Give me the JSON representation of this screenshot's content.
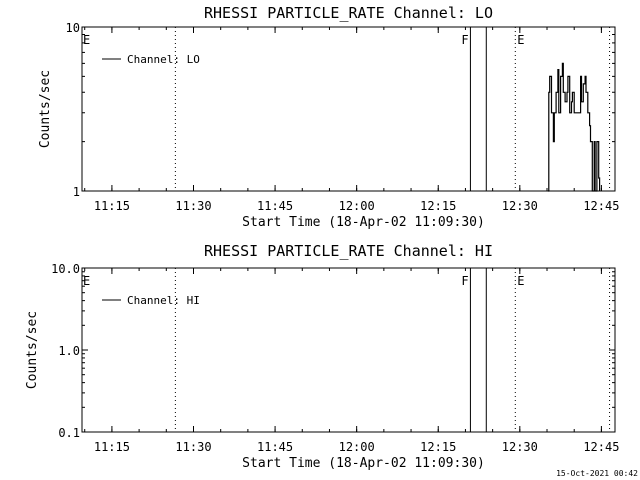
{
  "footer": "15-Oct-2021 00:42",
  "chart_data": [
    {
      "type": "line",
      "title": "RHESSI PARTICLE_RATE Channel: LO",
      "xlabel": "Start Time (18-Apr-02 11:09:30)",
      "ylabel": "Counts/sec",
      "yscale": "log",
      "ylim": [
        1,
        10
      ],
      "ytick_labels": [
        "1",
        "10"
      ],
      "xlim": [
        "11:09:30",
        "12:47:30"
      ],
      "xtick_labels": [
        "11:15",
        "11:30",
        "11:45",
        "12:00",
        "12:15",
        "12:30",
        "12:45"
      ],
      "legend": "top-left",
      "series": [
        {
          "name": "Channel: LO",
          "x": [
            "12:35:10",
            "12:35:20",
            "12:35:30",
            "12:35:50",
            "12:36:10",
            "12:36:20",
            "12:36:40",
            "12:37:00",
            "12:37:10",
            "12:37:30",
            "12:37:50",
            "12:38:00",
            "12:38:20",
            "12:38:40",
            "12:38:50",
            "12:39:10",
            "12:39:30",
            "12:39:40",
            "12:40:00",
            "12:40:20",
            "12:40:30",
            "12:40:50",
            "12:41:10",
            "12:41:20",
            "12:41:40",
            "12:42:00",
            "12:42:10",
            "12:42:30",
            "12:42:50",
            "12:43:00",
            "12:43:20",
            "12:43:40",
            "12:43:50",
            "12:44:10",
            "12:44:30",
            "12:44:40"
          ],
          "y": [
            1.0,
            4.0,
            5.0,
            3.0,
            2.0,
            3.0,
            4.0,
            5.5,
            3.0,
            5.0,
            6.0,
            4.0,
            3.5,
            4.0,
            5.0,
            3.0,
            3.5,
            4.0,
            3.0,
            3.0,
            3.0,
            3.0,
            5.0,
            3.5,
            4.5,
            5.0,
            4.0,
            3.0,
            2.5,
            2.0,
            1.0,
            2.0,
            1.0,
            2.0,
            1.2,
            1.0
          ]
        }
      ],
      "annotations": [
        {
          "label": "E",
          "time": "11:09:30",
          "line": "none"
        },
        {
          "label": "",
          "time": "11:26:40",
          "line": "dotted"
        },
        {
          "label": "F",
          "time": "12:20:55",
          "line": "solid"
        },
        {
          "label": "",
          "time": "12:23:50",
          "line": "solid"
        },
        {
          "label": "E",
          "time": "12:29:10",
          "line": "dotted"
        },
        {
          "label": "",
          "time": "12:46:30",
          "line": "dotted"
        }
      ]
    },
    {
      "type": "line",
      "title": "RHESSI PARTICLE_RATE Channel: HI",
      "xlabel": "Start Time (18-Apr-02 11:09:30)",
      "ylabel": "Counts/sec",
      "yscale": "log",
      "ylim": [
        0.1,
        10
      ],
      "ytick_labels": [
        "0.1",
        "1.0",
        "10.0"
      ],
      "xlim": [
        "11:09:30",
        "12:47:30"
      ],
      "xtick_labels": [
        "11:15",
        "11:30",
        "11:45",
        "12:00",
        "12:15",
        "12:30",
        "12:45"
      ],
      "legend": "top-left",
      "series": [
        {
          "name": "Channel: HI",
          "x": [],
          "y": []
        }
      ],
      "annotations": [
        {
          "label": "E",
          "time": "11:09:30",
          "line": "none"
        },
        {
          "label": "",
          "time": "11:26:40",
          "line": "dotted"
        },
        {
          "label": "F",
          "time": "12:20:55",
          "line": "solid"
        },
        {
          "label": "",
          "time": "12:23:50",
          "line": "solid"
        },
        {
          "label": "E",
          "time": "12:29:10",
          "line": "dotted"
        },
        {
          "label": "",
          "time": "12:46:30",
          "line": "dotted"
        }
      ]
    }
  ]
}
